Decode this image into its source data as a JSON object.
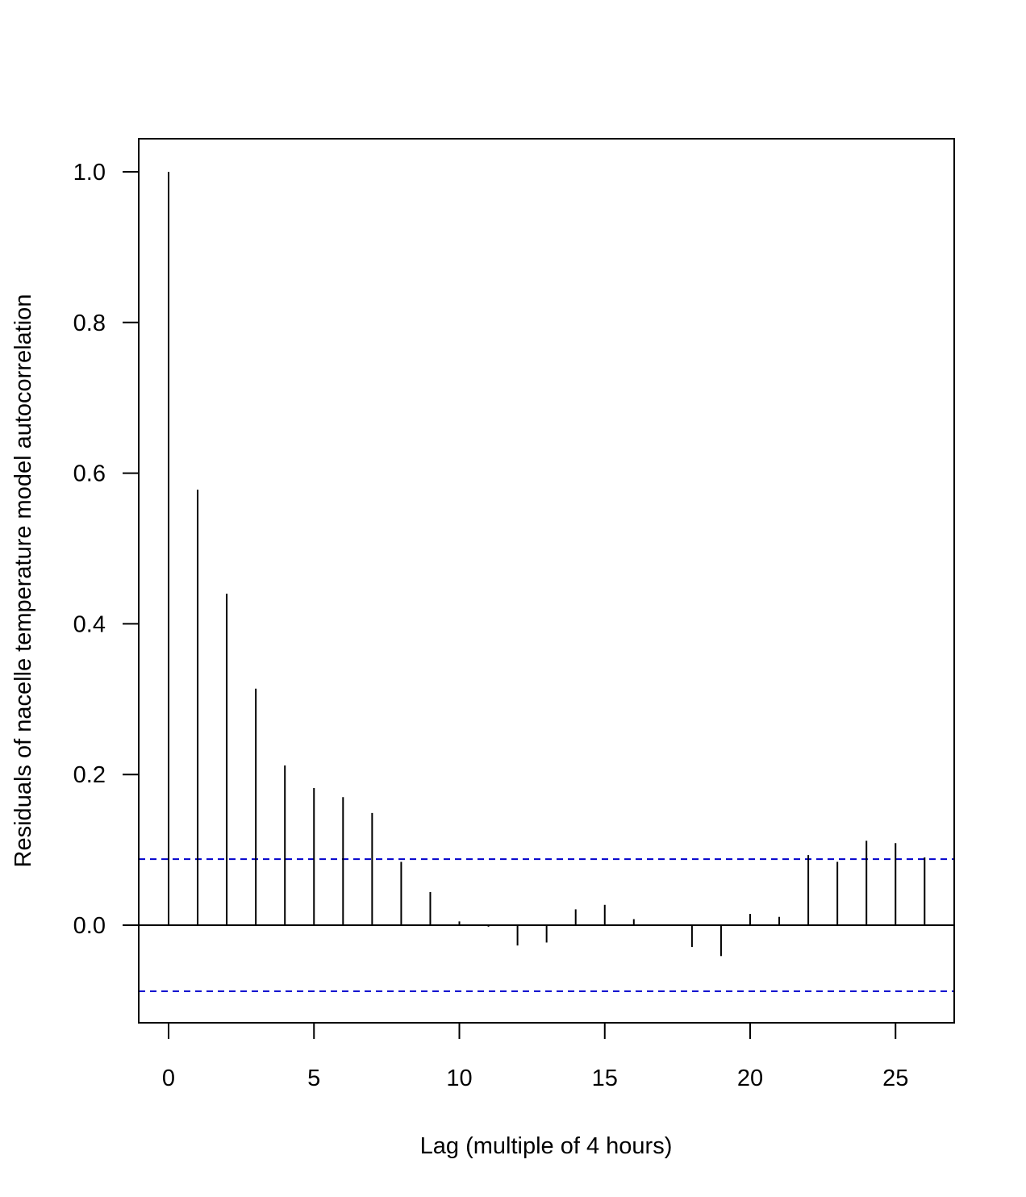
{
  "chart_data": {
    "type": "bar",
    "xlabel": "Lag (multiple of 4 hours)",
    "ylabel": "Residuals of nacelle temperature model autocorrelation",
    "xlim": [
      -1,
      27
    ],
    "ylim": [
      -0.13,
      1.04
    ],
    "xticks": [
      0,
      5,
      10,
      15,
      20,
      25
    ],
    "xtick_labels": [
      "0",
      "5",
      "10",
      "15",
      "20",
      "25"
    ],
    "yticks": [
      0.0,
      0.2,
      0.4,
      0.6,
      0.8,
      1.0
    ],
    "ytick_labels": [
      "0.0",
      "0.2",
      "0.4",
      "0.6",
      "0.8",
      "1.0"
    ],
    "x": [
      0,
      1,
      2,
      3,
      4,
      5,
      6,
      7,
      8,
      9,
      10,
      11,
      12,
      13,
      14,
      15,
      16,
      17,
      18,
      19,
      20,
      21,
      22,
      23,
      24,
      25,
      26
    ],
    "values": [
      1.0,
      0.578,
      0.44,
      0.314,
      0.212,
      0.182,
      0.17,
      0.149,
      0.084,
      0.044,
      0.005,
      -0.002,
      -0.027,
      -0.023,
      0.021,
      0.027,
      0.008,
      0.0,
      -0.029,
      -0.041,
      0.015,
      0.011,
      0.093,
      0.084,
      0.112,
      0.109,
      0.09
    ],
    "confidence_bounds": [
      0.0877,
      -0.0877
    ],
    "grid": false,
    "colors": {
      "bars": "#000000",
      "bounds": "#0000cc",
      "axes": "#000000"
    }
  }
}
